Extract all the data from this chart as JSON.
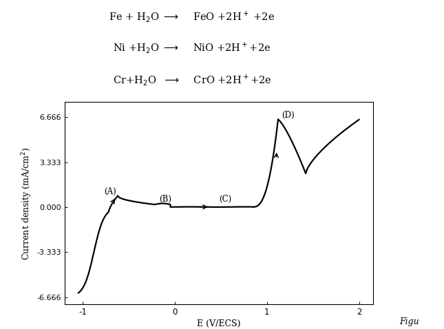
{
  "eq1": "Fe + H$_2$O $\\longrightarrow$    FeO +2H$^+$ +2e",
  "eq2": "Ni +H$_2$O $\\longrightarrow$    NiO +2H$^+$+2e",
  "eq3": "Cr+H$_2$O  $\\longrightarrow$    CrO +2H$^+$+2e",
  "xlabel": "E (V/ECS)",
  "ylabel": "Current density (mA/cm$^2$)",
  "xlim": [
    -1.2,
    2.15
  ],
  "ylim": [
    -7.2,
    7.8
  ],
  "yticks": [
    -6.666,
    -3.333,
    0.0,
    3.333,
    6.666
  ],
  "ytick_labels": [
    "-6.666",
    "-3.333",
    "0.000",
    "3.333",
    "6.666"
  ],
  "xticks": [
    -1,
    0,
    1,
    2
  ],
  "xtick_labels": [
    "-1",
    "0",
    "1",
    "2"
  ],
  "line_color": "#000000",
  "background_color": "#ffffff",
  "fig_caption": "Figu",
  "label_A": "(A)",
  "label_B": "(B)",
  "label_C": "(C)",
  "label_D": "(D)"
}
